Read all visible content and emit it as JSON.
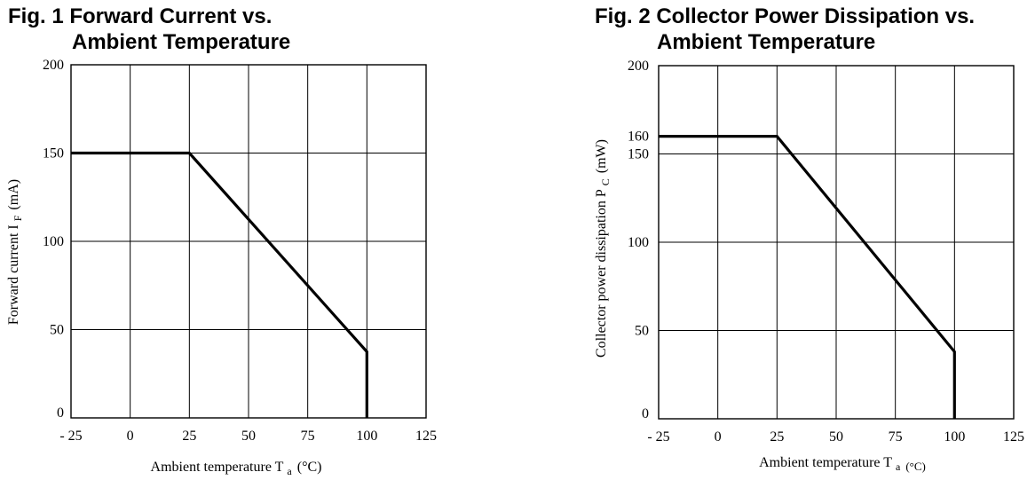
{
  "chart_data": [
    {
      "type": "line",
      "title": {
        "line1": "Fig. 1 Forward Current vs.",
        "line2": "Ambient Temperature"
      },
      "xlabel": {
        "text": "Ambient temperature T",
        "sub": "a",
        "unit": "(°C)"
      },
      "ylabel": {
        "text": "Forward current I",
        "sub": "F",
        "unit": "(mA)"
      },
      "xlim": [
        -25,
        125
      ],
      "ylim": [
        0,
        200
      ],
      "x_ticks": [
        {
          "value": -25,
          "label": "- 25"
        },
        {
          "value": 0,
          "label": "0"
        },
        {
          "value": 25,
          "label": "25"
        },
        {
          "value": 50,
          "label": "50"
        },
        {
          "value": 75,
          "label": "75"
        },
        {
          "value": 100,
          "label": "100"
        },
        {
          "value": 125,
          "label": "125"
        }
      ],
      "y_ticks": [
        {
          "value": 0,
          "label": "0"
        },
        {
          "value": 50,
          "label": "50"
        },
        {
          "value": 100,
          "label": "100"
        },
        {
          "value": 150,
          "label": "150"
        },
        {
          "value": 200,
          "label": "200"
        }
      ],
      "grid": true,
      "series": [
        {
          "x": [
            -25,
            25,
            100,
            100
          ],
          "y": [
            150,
            150,
            37.5,
            0
          ]
        }
      ]
    },
    {
      "type": "line",
      "title": {
        "line1": "Fig. 2 Collector Power Dissipation vs.",
        "line2": "Ambient Temperature"
      },
      "xlabel": {
        "text": "Ambient temperature T",
        "sub": "a",
        "unit": "(°C)"
      },
      "ylabel": {
        "text": "Collector power dissipation P",
        "sub": "C",
        "unit": "(mW)"
      },
      "xlim": [
        -25,
        125
      ],
      "ylim": [
        0,
        200
      ],
      "x_ticks": [
        {
          "value": -25,
          "label": "- 25"
        },
        {
          "value": 0,
          "label": "0"
        },
        {
          "value": 25,
          "label": "25"
        },
        {
          "value": 50,
          "label": "50"
        },
        {
          "value": 75,
          "label": "75"
        },
        {
          "value": 100,
          "label": "100"
        },
        {
          "value": 125,
          "label": "125"
        }
      ],
      "y_ticks": [
        {
          "value": 0,
          "label": "0"
        },
        {
          "value": 50,
          "label": "50"
        },
        {
          "value": 100,
          "label": "100"
        },
        {
          "value": 150,
          "label": "150"
        },
        {
          "value": 160,
          "label": "160",
          "grid": false
        },
        {
          "value": 200,
          "label": "200"
        }
      ],
      "grid": true,
      "series": [
        {
          "x": [
            -25,
            25,
            100,
            100
          ],
          "y": [
            160,
            160,
            38,
            0
          ]
        }
      ]
    }
  ]
}
